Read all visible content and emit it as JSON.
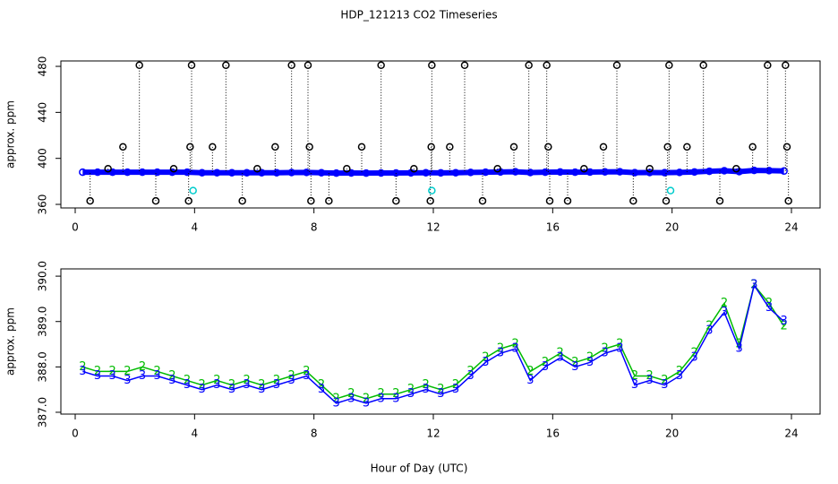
{
  "chart_data": [
    {
      "type": "scatter",
      "title": "HDP_121213  CO2 Timeseries",
      "ylabel": "approx. ppm",
      "xlim": [
        -0.48,
        24.96
      ],
      "xticks": [
        0,
        4,
        8,
        12,
        16,
        20,
        24
      ],
      "ylim": [
        356.9,
        484.7
      ],
      "yticks": [
        360,
        400,
        440,
        480
      ],
      "series": [
        {
          "color": "#0000ff",
          "x": [
            0.25,
            0.75,
            1.25,
            1.75,
            2.25,
            2.75,
            3.25,
            3.75,
            4.25,
            4.75,
            5.25,
            5.75,
            6.25,
            6.75,
            7.25,
            7.75,
            8.25,
            8.75,
            9.25,
            9.75,
            10.25,
            10.75,
            11.25,
            11.75,
            12.25,
            12.75,
            13.25,
            13.75,
            14.25,
            14.75,
            15.25,
            15.75,
            16.25,
            16.75,
            17.25,
            17.75,
            18.25,
            18.75,
            19.25,
            19.75,
            20.25,
            20.75,
            21.25,
            21.75,
            22.25,
            22.75,
            23.25,
            23.75
          ],
          "values": [
            388,
            388,
            388,
            388,
            388,
            388,
            388,
            388,
            387.5,
            387.5,
            387.5,
            387.5,
            387.5,
            387.5,
            387.7,
            387.8,
            387.5,
            387.2,
            387.3,
            387.2,
            387.3,
            387.3,
            387.4,
            387.5,
            387.4,
            387.5,
            387.8,
            388,
            388.2,
            388.4,
            387.7,
            388,
            388.2,
            388,
            388.1,
            388.3,
            388.4,
            387.6,
            387.7,
            387.6,
            387.8,
            388.2,
            388.8,
            389.2,
            388.5,
            389.5,
            389.3,
            389
          ]
        },
        {
          "color": "#000000",
          "drop_lines": true,
          "x": [
            0.5,
            1.1,
            1.6,
            2.15,
            2.7,
            3.3,
            3.8,
            3.85,
            3.9,
            4.6,
            5.05,
            5.6,
            6.1,
            6.7,
            7.25,
            7.8,
            7.85,
            7.9,
            8.5,
            9.1,
            9.6,
            10.25,
            10.75,
            11.35,
            11.9,
            11.93,
            11.95,
            12.55,
            13.05,
            13.65,
            14.15,
            14.7,
            15.2,
            15.8,
            15.85,
            15.9,
            16.5,
            17.05,
            17.7,
            18.15,
            18.7,
            19.25,
            19.8,
            19.85,
            19.9,
            20.5,
            21.05,
            21.6,
            22.15,
            22.7,
            23.2,
            23.8,
            23.85,
            23.9
          ],
          "values": [
            363,
            391,
            410,
            481,
            363,
            391,
            363,
            410,
            481,
            410,
            481,
            363,
            391,
            410,
            481,
            481,
            410,
            363,
            363,
            391,
            410,
            481,
            363,
            391,
            363,
            410,
            481,
            410,
            481,
            363,
            391,
            410,
            481,
            481,
            410,
            363,
            363,
            391,
            410,
            481,
            363,
            391,
            363,
            410,
            481,
            410,
            481,
            363,
            391,
            410,
            481,
            481,
            410,
            363
          ]
        },
        {
          "color": "#00cccc",
          "x": [
            3.95,
            11.95,
            19.95
          ],
          "values": [
            372,
            372,
            372
          ]
        }
      ]
    },
    {
      "type": "line",
      "ylabel": "approx. ppm",
      "xlabel": "Hour of Day (UTC)",
      "xlim": [
        -0.48,
        24.96
      ],
      "xticks": [
        0,
        4,
        8,
        12,
        16,
        20,
        24
      ],
      "ylim": [
        386.96,
        390.16
      ],
      "yticks": [
        {
          "value": 387,
          "label": "387.0"
        },
        {
          "value": 388,
          "label": "388.0"
        },
        {
          "value": 389,
          "label": "389.0"
        },
        {
          "value": 390,
          "label": "390.0"
        }
      ],
      "series": [
        {
          "color": "#00bb00",
          "marker": "2",
          "x": [
            0.25,
            0.75,
            1.25,
            1.75,
            2.25,
            2.75,
            3.25,
            3.75,
            4.25,
            4.75,
            5.25,
            5.75,
            6.25,
            6.75,
            7.25,
            7.75,
            8.25,
            8.75,
            9.25,
            9.75,
            10.25,
            10.75,
            11.25,
            11.75,
            12.25,
            12.75,
            13.25,
            13.75,
            14.25,
            14.75,
            15.25,
            15.75,
            16.25,
            16.75,
            17.25,
            17.75,
            18.25,
            18.75,
            19.25,
            19.75,
            20.25,
            20.75,
            21.25,
            21.75,
            22.25,
            22.75,
            23.25,
            23.75
          ],
          "values": [
            388,
            387.9,
            387.9,
            387.9,
            388,
            387.9,
            387.8,
            387.7,
            387.6,
            387.7,
            387.6,
            387.7,
            387.6,
            387.7,
            387.8,
            387.9,
            387.6,
            387.3,
            387.4,
            387.3,
            387.4,
            387.4,
            387.5,
            387.6,
            387.5,
            387.6,
            387.9,
            388.2,
            388.4,
            388.5,
            387.9,
            388.1,
            388.3,
            388.1,
            388.2,
            388.4,
            388.5,
            387.8,
            387.8,
            387.7,
            387.9,
            388.3,
            388.9,
            389.4,
            388.5,
            389.8,
            389.4,
            388.9
          ]
        },
        {
          "color": "#0000ff",
          "marker": "3",
          "x": [
            0.25,
            0.75,
            1.25,
            1.75,
            2.25,
            2.75,
            3.25,
            3.75,
            4.25,
            4.75,
            5.25,
            5.75,
            6.25,
            6.75,
            7.25,
            7.75,
            8.25,
            8.75,
            9.25,
            9.75,
            10.25,
            10.75,
            11.25,
            11.75,
            12.25,
            12.75,
            13.25,
            13.75,
            14.25,
            14.75,
            15.25,
            15.75,
            16.25,
            16.75,
            17.25,
            17.75,
            18.25,
            18.75,
            19.25,
            19.75,
            20.25,
            20.75,
            21.25,
            21.75,
            22.25,
            22.75,
            23.25,
            23.75
          ],
          "values": [
            387.9,
            387.8,
            387.8,
            387.7,
            387.8,
            387.8,
            387.7,
            387.6,
            387.5,
            387.6,
            387.5,
            387.6,
            387.5,
            387.6,
            387.7,
            387.8,
            387.5,
            387.2,
            387.3,
            387.2,
            387.3,
            387.3,
            387.4,
            387.5,
            387.4,
            387.5,
            387.8,
            388.1,
            388.3,
            388.4,
            387.7,
            388,
            388.2,
            388,
            388.1,
            388.3,
            388.4,
            387.6,
            387.7,
            387.6,
            387.8,
            388.2,
            388.8,
            389.2,
            388.4,
            389.8,
            389.3,
            389
          ]
        }
      ]
    }
  ]
}
